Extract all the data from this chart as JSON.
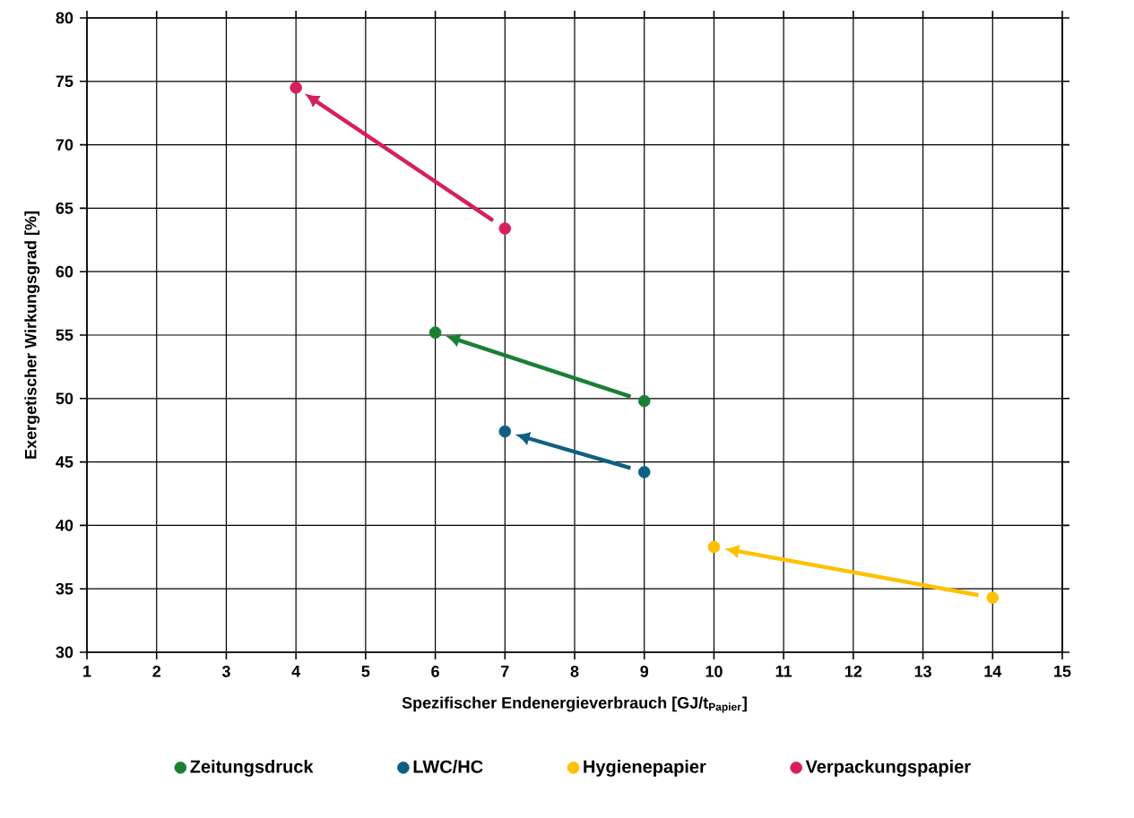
{
  "chart_data": {
    "type": "scatter",
    "xlabel": "Spezifischer Endenergieverbrauch [GJ/t$_{Papier}$]",
    "ylabel": "Exergetischer Wirkungsgrad [%]",
    "xlim": [
      1,
      15
    ],
    "xticks": [
      1,
      2,
      3,
      4,
      5,
      6,
      7,
      8,
      9,
      10,
      11,
      12,
      13,
      14,
      15
    ],
    "ylim": [
      30,
      80
    ],
    "yticks": [
      30,
      35,
      40,
      45,
      50,
      55,
      60,
      65,
      70,
      75,
      80
    ],
    "grid": true,
    "legend": "bottom",
    "marker": "circle",
    "series": [
      {
        "name": "Zeitungsdruck",
        "color": "#1a7f35",
        "x": [
          6,
          9
        ],
        "values": [
          55.2,
          49.8
        ]
      },
      {
        "name": "LWC/HC",
        "color": "#0f5f80",
        "x": [
          7,
          9
        ],
        "values": [
          47.4,
          44.2
        ]
      },
      {
        "name": "Hygienepapier",
        "color": "#ffc000",
        "x": [
          10,
          14
        ],
        "values": [
          38.3,
          34.3
        ]
      },
      {
        "name": "Verpackungspapier",
        "color": "#d61f5f",
        "x": [
          4,
          7
        ],
        "values": [
          74.5,
          63.4
        ]
      }
    ]
  }
}
